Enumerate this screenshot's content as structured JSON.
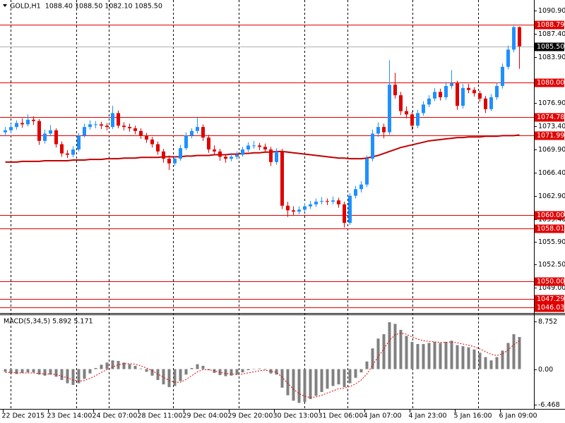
{
  "chart_data": {
    "type": "candlestick",
    "title": "GOLD,H1  1088.40 1088.50 1082.10 1085.50",
    "up_color": "#1e90ff",
    "down_color": "#e00000",
    "ylim": [
      1045.28,
      1092.5
    ],
    "yticks": [
      {
        "value": 1090.9,
        "label": "1090.90"
      },
      {
        "value": 1087.4,
        "label": "1087.40"
      },
      {
        "value": 1083.9,
        "label": "1083.90"
      },
      {
        "value": 1076.9,
        "label": "1076.90"
      },
      {
        "value": 1073.4,
        "label": "1073.40"
      },
      {
        "value": 1069.9,
        "label": "1069.90"
      },
      {
        "value": 1066.4,
        "label": "1066.40"
      },
      {
        "value": 1062.9,
        "label": "1062.90"
      },
      {
        "value": 1059.4,
        "label": "1059.40"
      },
      {
        "value": 1055.9,
        "label": "1055.90"
      },
      {
        "value": 1052.5,
        "label": "1052.50"
      },
      {
        "value": 1049,
        "label": "1049.00"
      }
    ],
    "xticks": [
      {
        "value": 0,
        "label": "22 Dec 2015"
      },
      {
        "value": 8,
        "label": "23 Dec 14:00"
      },
      {
        "value": 16,
        "label": "24 Dec 07:00"
      },
      {
        "value": 24,
        "label": "28 Dec 11:00"
      },
      {
        "value": 32,
        "label": "29 Dec 04:00"
      },
      {
        "value": 40,
        "label": "29 Dec 20:00"
      },
      {
        "value": 48,
        "label": "30 Dec 13:00"
      },
      {
        "value": 56,
        "label": "31 Dec 06:00"
      },
      {
        "value": 64,
        "label": "4 Jan 07:00"
      },
      {
        "value": 72,
        "label": "4 Jan 23:00"
      },
      {
        "value": 80,
        "label": "5 Jan 16:00"
      },
      {
        "value": 88,
        "label": "6 Jan 09:00"
      }
    ],
    "ohlc": [
      [
        1072.5,
        1073.3,
        1071.9,
        1072.8
      ],
      [
        1072.8,
        1073.8,
        1072.4,
        1073.3
      ],
      [
        1073.3,
        1074.3,
        1072.9,
        1073.9
      ],
      [
        1073.9,
        1074.6,
        1073.2,
        1073.7
      ],
      [
        1073.7,
        1075.2,
        1073.4,
        1074.4
      ],
      [
        1074.4,
        1074.9,
        1073.6,
        1074.2
      ],
      [
        1074.2,
        1074.5,
        1070.6,
        1071.2
      ],
      [
        1071.2,
        1072.9,
        1070.8,
        1072.3
      ],
      [
        1072.3,
        1073.6,
        1071.9,
        1072.8
      ],
      [
        1072.8,
        1073.1,
        1070.2,
        1070.7
      ],
      [
        1070.7,
        1071.1,
        1068.8,
        1069.3
      ],
      [
        1069.3,
        1069.8,
        1068.6,
        1069.1
      ],
      [
        1069.1,
        1070.4,
        1068.7,
        1069.9
      ],
      [
        1069.9,
        1072.4,
        1069.6,
        1072.0
      ],
      [
        1072.0,
        1073.8,
        1071.7,
        1073.3
      ],
      [
        1073.3,
        1074.3,
        1072.9,
        1073.7
      ],
      [
        1073.7,
        1074.2,
        1073.1,
        1073.7
      ],
      [
        1073.7,
        1074.1,
        1073.0,
        1073.5
      ],
      [
        1073.5,
        1073.9,
        1072.8,
        1073.3
      ],
      [
        1073.3,
        1076.5,
        1073.0,
        1075.4
      ],
      [
        1075.4,
        1075.8,
        1073.1,
        1073.5
      ],
      [
        1073.5,
        1074.0,
        1072.8,
        1073.3
      ],
      [
        1073.3,
        1073.8,
        1072.6,
        1073.1
      ],
      [
        1073.1,
        1073.5,
        1072.2,
        1072.7
      ],
      [
        1072.7,
        1073.1,
        1071.5,
        1072.0
      ],
      [
        1072.0,
        1072.4,
        1070.9,
        1071.4
      ],
      [
        1071.4,
        1071.8,
        1070.2,
        1070.7
      ],
      [
        1070.7,
        1071.1,
        1069.1,
        1069.6
      ],
      [
        1069.6,
        1070.0,
        1067.9,
        1068.5
      ],
      [
        1068.5,
        1069.0,
        1066.8,
        1067.8
      ],
      [
        1067.8,
        1068.9,
        1067.4,
        1068.5
      ],
      [
        1068.5,
        1070.6,
        1068.2,
        1070.1
      ],
      [
        1070.1,
        1072.5,
        1069.8,
        1072.0
      ],
      [
        1072.0,
        1073.1,
        1071.6,
        1072.7
      ],
      [
        1072.7,
        1074.7,
        1072.3,
        1073.3
      ],
      [
        1073.3,
        1073.7,
        1071.2,
        1071.7
      ],
      [
        1071.7,
        1072.1,
        1069.4,
        1069.9
      ],
      [
        1069.9,
        1070.5,
        1069.0,
        1069.6
      ],
      [
        1069.6,
        1070.0,
        1068.2,
        1068.8
      ],
      [
        1068.8,
        1069.2,
        1067.9,
        1068.5
      ],
      [
        1068.5,
        1069.4,
        1068.1,
        1068.8
      ],
      [
        1068.8,
        1069.6,
        1068.4,
        1069.1
      ],
      [
        1069.1,
        1070.3,
        1068.8,
        1069.9
      ],
      [
        1069.9,
        1071.0,
        1069.5,
        1070.5
      ],
      [
        1070.5,
        1071.2,
        1070.0,
        1070.5
      ],
      [
        1070.5,
        1070.9,
        1069.8,
        1070.3
      ],
      [
        1070.3,
        1070.8,
        1069.4,
        1069.9
      ],
      [
        1069.9,
        1070.3,
        1067.4,
        1068.0
      ],
      [
        1068.0,
        1070.1,
        1067.6,
        1069.6
      ],
      [
        1069.6,
        1070.0,
        1060.9,
        1061.4
      ],
      [
        1061.4,
        1062.0,
        1059.7,
        1060.7
      ],
      [
        1060.7,
        1061.3,
        1059.9,
        1060.5
      ],
      [
        1060.5,
        1061.3,
        1060.1,
        1060.8
      ],
      [
        1060.8,
        1061.8,
        1060.4,
        1061.3
      ],
      [
        1061.3,
        1062.1,
        1060.9,
        1061.6
      ],
      [
        1061.6,
        1062.5,
        1061.2,
        1062.0
      ],
      [
        1062.0,
        1062.7,
        1061.6,
        1062.1
      ],
      [
        1062.1,
        1062.5,
        1061.5,
        1062.0
      ],
      [
        1062.0,
        1062.8,
        1061.6,
        1062.2
      ],
      [
        1062.2,
        1062.6,
        1061.1,
        1061.6
      ],
      [
        1061.6,
        1062.0,
        1058.1,
        1058.8
      ],
      [
        1058.8,
        1063.3,
        1058.5,
        1062.9
      ],
      [
        1062.9,
        1064.4,
        1062.5,
        1063.9
      ],
      [
        1063.9,
        1065.1,
        1063.4,
        1064.6
      ],
      [
        1064.6,
        1069.0,
        1064.2,
        1068.5
      ],
      [
        1068.5,
        1072.9,
        1068.1,
        1072.3
      ],
      [
        1072.3,
        1074.0,
        1071.8,
        1073.3
      ],
      [
        1073.3,
        1073.8,
        1071.6,
        1072.5
      ],
      [
        1072.5,
        1083.4,
        1072.1,
        1079.7
      ],
      [
        1079.7,
        1081.5,
        1077.6,
        1078.1
      ],
      [
        1078.1,
        1078.6,
        1075.1,
        1075.7
      ],
      [
        1075.7,
        1076.4,
        1074.6,
        1075.2
      ],
      [
        1075.2,
        1075.6,
        1072.8,
        1073.5
      ],
      [
        1073.5,
        1075.9,
        1073.1,
        1075.4
      ],
      [
        1075.4,
        1077.2,
        1075.0,
        1076.7
      ],
      [
        1076.7,
        1078.1,
        1076.3,
        1077.6
      ],
      [
        1077.6,
        1079.2,
        1077.2,
        1078.6
      ],
      [
        1078.6,
        1079.1,
        1077.3,
        1077.8
      ],
      [
        1077.8,
        1080.1,
        1077.4,
        1079.5
      ],
      [
        1079.5,
        1081.9,
        1079.1,
        1079.9
      ],
      [
        1079.9,
        1080.3,
        1075.9,
        1076.5
      ],
      [
        1076.5,
        1079.8,
        1076.1,
        1079.2
      ],
      [
        1079.2,
        1079.8,
        1078.4,
        1078.9
      ],
      [
        1078.9,
        1079.3,
        1077.9,
        1078.4
      ],
      [
        1078.4,
        1078.8,
        1077.1,
        1077.6
      ],
      [
        1077.6,
        1078.0,
        1075.4,
        1076.0
      ],
      [
        1076.0,
        1078.3,
        1075.7,
        1077.8
      ],
      [
        1077.8,
        1080.0,
        1077.4,
        1079.5
      ],
      [
        1079.5,
        1082.9,
        1079.1,
        1082.4
      ],
      [
        1082.4,
        1085.6,
        1082.0,
        1085.0
      ],
      [
        1085.0,
        1088.6,
        1084.6,
        1088.4
      ],
      [
        1088.4,
        1088.5,
        1082.1,
        1085.5
      ]
    ],
    "ma": {
      "color": "#c00000",
      "values": [
        1068.0,
        1068.0,
        1068.0,
        1068.1,
        1068.1,
        1068.1,
        1068.1,
        1068.2,
        1068.2,
        1068.2,
        1068.2,
        1068.2,
        1068.3,
        1068.3,
        1068.3,
        1068.4,
        1068.4,
        1068.4,
        1068.5,
        1068.5,
        1068.5,
        1068.6,
        1068.6,
        1068.6,
        1068.7,
        1068.7,
        1068.7,
        1068.7,
        1068.8,
        1068.8,
        1068.8,
        1068.8,
        1068.9,
        1068.9,
        1069.0,
        1069.0,
        1069.0,
        1069.1,
        1069.1,
        1069.1,
        1069.2,
        1069.2,
        1069.3,
        1069.3,
        1069.4,
        1069.4,
        1069.5,
        1069.5,
        1069.6,
        1069.6,
        1069.5,
        1069.4,
        1069.3,
        1069.2,
        1069.1,
        1069.0,
        1068.9,
        1068.8,
        1068.7,
        1068.6,
        1068.6,
        1068.5,
        1068.5,
        1068.5,
        1068.6,
        1068.8,
        1069.0,
        1069.3,
        1069.6,
        1069.9,
        1070.2,
        1070.4,
        1070.6,
        1070.8,
        1071.0,
        1071.2,
        1071.3,
        1071.4,
        1071.5,
        1071.6,
        1071.7,
        1071.7,
        1071.8,
        1071.8,
        1071.8,
        1071.9,
        1071.9,
        1071.9,
        1072.0,
        1072.0,
        1072.0,
        1072.1
      ]
    },
    "levels": {
      "color": "#e00000",
      "values": [
        {
          "value": 1088.79,
          "label": "1088.79"
        },
        {
          "value": 1080,
          "label": "1080.00"
        },
        {
          "value": 1074.78,
          "label": "1074.78"
        },
        {
          "value": 1071.99,
          "label": "1071.99"
        },
        {
          "value": 1060,
          "label": "1060.00"
        },
        {
          "value": 1058.01,
          "label": "1058.01"
        },
        {
          "value": 1050,
          "label": "1050.00"
        },
        {
          "value": 1047.29,
          "label": "1047.29"
        },
        {
          "value": 1046.03,
          "label": "1046.03"
        }
      ]
    },
    "bid": {
      "value": 1085.5,
      "label": "1085.50",
      "color": "#000000"
    },
    "macd": {
      "type": "bar",
      "title": "MACD(5,34,5) 5.892 5.171",
      "ylim": [
        -7.3,
        9.9
      ],
      "yticks": [
        8.752,
        {
          "value": 0,
          "label": "0.00"
        },
        -6.468
      ],
      "histogram": {
        "color": "#808080",
        "values": [
          -0.5,
          -0.8,
          -0.9,
          -0.7,
          -0.6,
          -0.6,
          -1.0,
          -1.2,
          -1.0,
          -1.4,
          -2.0,
          -2.6,
          -2.9,
          -2.6,
          -1.8,
          -0.8,
          0.2,
          0.8,
          1.2,
          1.6,
          1.5,
          1.2,
          0.9,
          0.6,
          0.1,
          -0.5,
          -1.2,
          -2.0,
          -2.8,
          -3.3,
          -3.1,
          -2.2,
          -1.0,
          0.2,
          0.9,
          0.6,
          -0.2,
          -0.7,
          -1.1,
          -1.3,
          -1.2,
          -1.0,
          -0.6,
          -0.2,
          0.0,
          0.1,
          -0.1,
          -0.8,
          -1.0,
          -3.4,
          -4.8,
          -5.8,
          -6.2,
          -6.0,
          -5.5,
          -4.9,
          -4.2,
          -3.6,
          -3.1,
          -2.8,
          -3.3,
          -2.6,
          -1.6,
          -0.6,
          1.4,
          3.8,
          5.6,
          6.4,
          8.6,
          8.3,
          7.2,
          6.1,
          5.0,
          4.6,
          4.6,
          4.8,
          5.0,
          4.8,
          5.0,
          5.2,
          4.4,
          4.2,
          4.0,
          3.6,
          3.0,
          2.2,
          1.6,
          2.2,
          3.4,
          4.8,
          6.4,
          5.892
        ]
      },
      "signal": {
        "color": "#e00000",
        "values": [
          -0.6,
          -0.6,
          -0.7,
          -0.7,
          -0.7,
          -0.7,
          -0.8,
          -0.9,
          -0.9,
          -1.0,
          -1.3,
          -1.6,
          -2.0,
          -2.2,
          -2.1,
          -1.7,
          -1.2,
          -0.6,
          -0.1,
          0.4,
          0.8,
          1.0,
          1.0,
          0.9,
          0.6,
          0.2,
          -0.3,
          -0.9,
          -1.5,
          -2.1,
          -2.4,
          -2.4,
          -1.9,
          -1.2,
          -0.5,
          -0.1,
          -0.1,
          -0.3,
          -0.6,
          -0.8,
          -0.9,
          -1.0,
          -0.9,
          -0.7,
          -0.5,
          -0.3,
          -0.2,
          -0.4,
          -0.6,
          -1.5,
          -2.6,
          -3.7,
          -4.5,
          -5.0,
          -5.2,
          -5.1,
          -4.8,
          -4.4,
          -4.0,
          -3.6,
          -3.5,
          -3.2,
          -2.7,
          -2.0,
          -0.9,
          0.7,
          2.3,
          3.7,
          5.3,
          6.3,
          6.6,
          6.4,
          5.9,
          5.5,
          5.2,
          5.1,
          5.0,
          4.9,
          4.9,
          5.0,
          4.8,
          4.6,
          4.4,
          4.1,
          3.7,
          3.2,
          2.7,
          2.5,
          2.8,
          3.5,
          4.5,
          5.171
        ]
      }
    }
  }
}
